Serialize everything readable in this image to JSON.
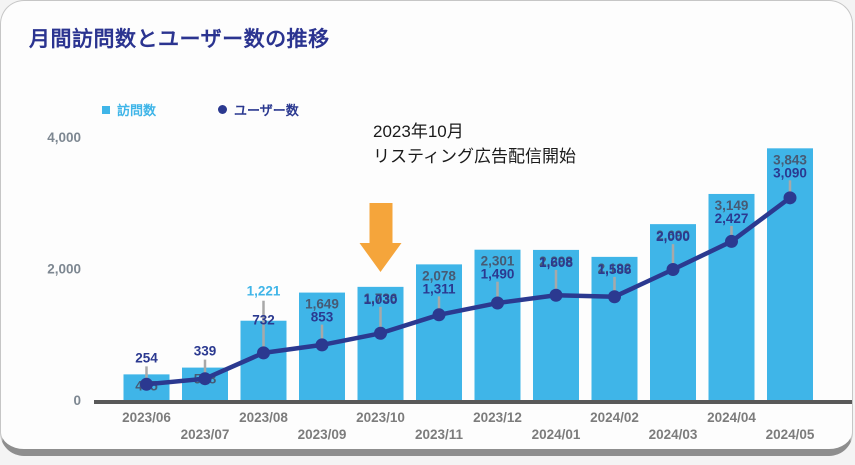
{
  "card": {
    "title": "月間訪問数とユーザー数の推移"
  },
  "legend": {
    "visits_label": "訪問数",
    "users_label": "ユーザー数"
  },
  "annotation": {
    "line1": "2023年10月",
    "line2": "リスティング広告配信開始"
  },
  "colors": {
    "bar": "#3fb5e8",
    "line": "#2b3990",
    "title": "#2b3490",
    "bar_label_inside": "#475a74",
    "bar_label_outside": "#3fb5e8",
    "line_label": "#2b3990",
    "axis_line": "#595959",
    "tick_label": "#7d8791",
    "leader_line": "#a8a8a8",
    "arrow": "#f5a53b"
  },
  "chart_data": {
    "type": "combo (bar + line)",
    "categories": [
      "2023/06",
      "2023/07",
      "2023/08",
      "2023/09",
      "2023/10",
      "2023/11",
      "2023/12",
      "2024/01",
      "2024/02",
      "2024/03",
      "2024/04",
      "2024/05"
    ],
    "series": [
      {
        "name": "訪問数",
        "type": "bar",
        "values": [
          405,
          508,
          1221,
          1649,
          1736,
          2078,
          2301,
          2298,
          2192,
          2690,
          3149,
          3843
        ]
      },
      {
        "name": "ユーザー数",
        "type": "line",
        "values": [
          254,
          339,
          732,
          853,
          1030,
          1311,
          1490,
          1608,
          1586,
          2000,
          2427,
          3090
        ]
      }
    ],
    "title": "月間訪問数とユーザー数の推移",
    "xlabel": "",
    "ylabel": "",
    "ylim": [
      0,
      4000
    ],
    "yticks": [
      {
        "value": 0,
        "label": "0"
      },
      {
        "value": 2000,
        "label": "2,000"
      },
      {
        "value": 4000,
        "label": "4,000"
      }
    ],
    "grid": false,
    "legend_position": "top-left",
    "data_labels": true,
    "annotation_target_category": "2023/10"
  }
}
